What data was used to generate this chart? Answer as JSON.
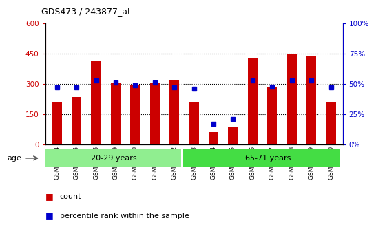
{
  "title": "GDS473 / 243877_at",
  "samples": [
    "GSM10354",
    "GSM10355",
    "GSM10356",
    "GSM10359",
    "GSM10360",
    "GSM10361",
    "GSM10362",
    "GSM10363",
    "GSM10364",
    "GSM10365",
    "GSM10366",
    "GSM10367",
    "GSM10368",
    "GSM10369",
    "GSM10370"
  ],
  "counts": [
    210,
    235,
    415,
    305,
    292,
    307,
    318,
    212,
    63,
    88,
    430,
    285,
    447,
    440,
    210
  ],
  "percentiles": [
    47,
    47,
    53,
    51,
    49,
    51,
    47,
    46,
    17,
    21,
    53,
    48,
    53,
    53,
    47
  ],
  "groups": [
    {
      "label": "20-29 years",
      "start": 0,
      "end": 7,
      "color": "#90ee90"
    },
    {
      "label": "65-71 years",
      "start": 7,
      "end": 15,
      "color": "#44dd44"
    }
  ],
  "bar_color": "#cc0000",
  "percentile_color": "#0000cc",
  "ylim_left": [
    0,
    600
  ],
  "ylim_right": [
    0,
    100
  ],
  "yticks_left": [
    0,
    150,
    300,
    450,
    600
  ],
  "ytick_labels_left": [
    "0",
    "150",
    "300",
    "450",
    "600"
  ],
  "yticks_right": [
    0,
    25,
    50,
    75,
    100
  ],
  "ytick_labels_right": [
    "0%",
    "25%",
    "50%",
    "75%",
    "100%"
  ],
  "bg_color": "#ffffff",
  "plot_bg": "#ffffff",
  "axis_bg": "#cccccc",
  "age_label": "age",
  "legend_count": "count",
  "legend_percentile": "percentile rank within the sample"
}
